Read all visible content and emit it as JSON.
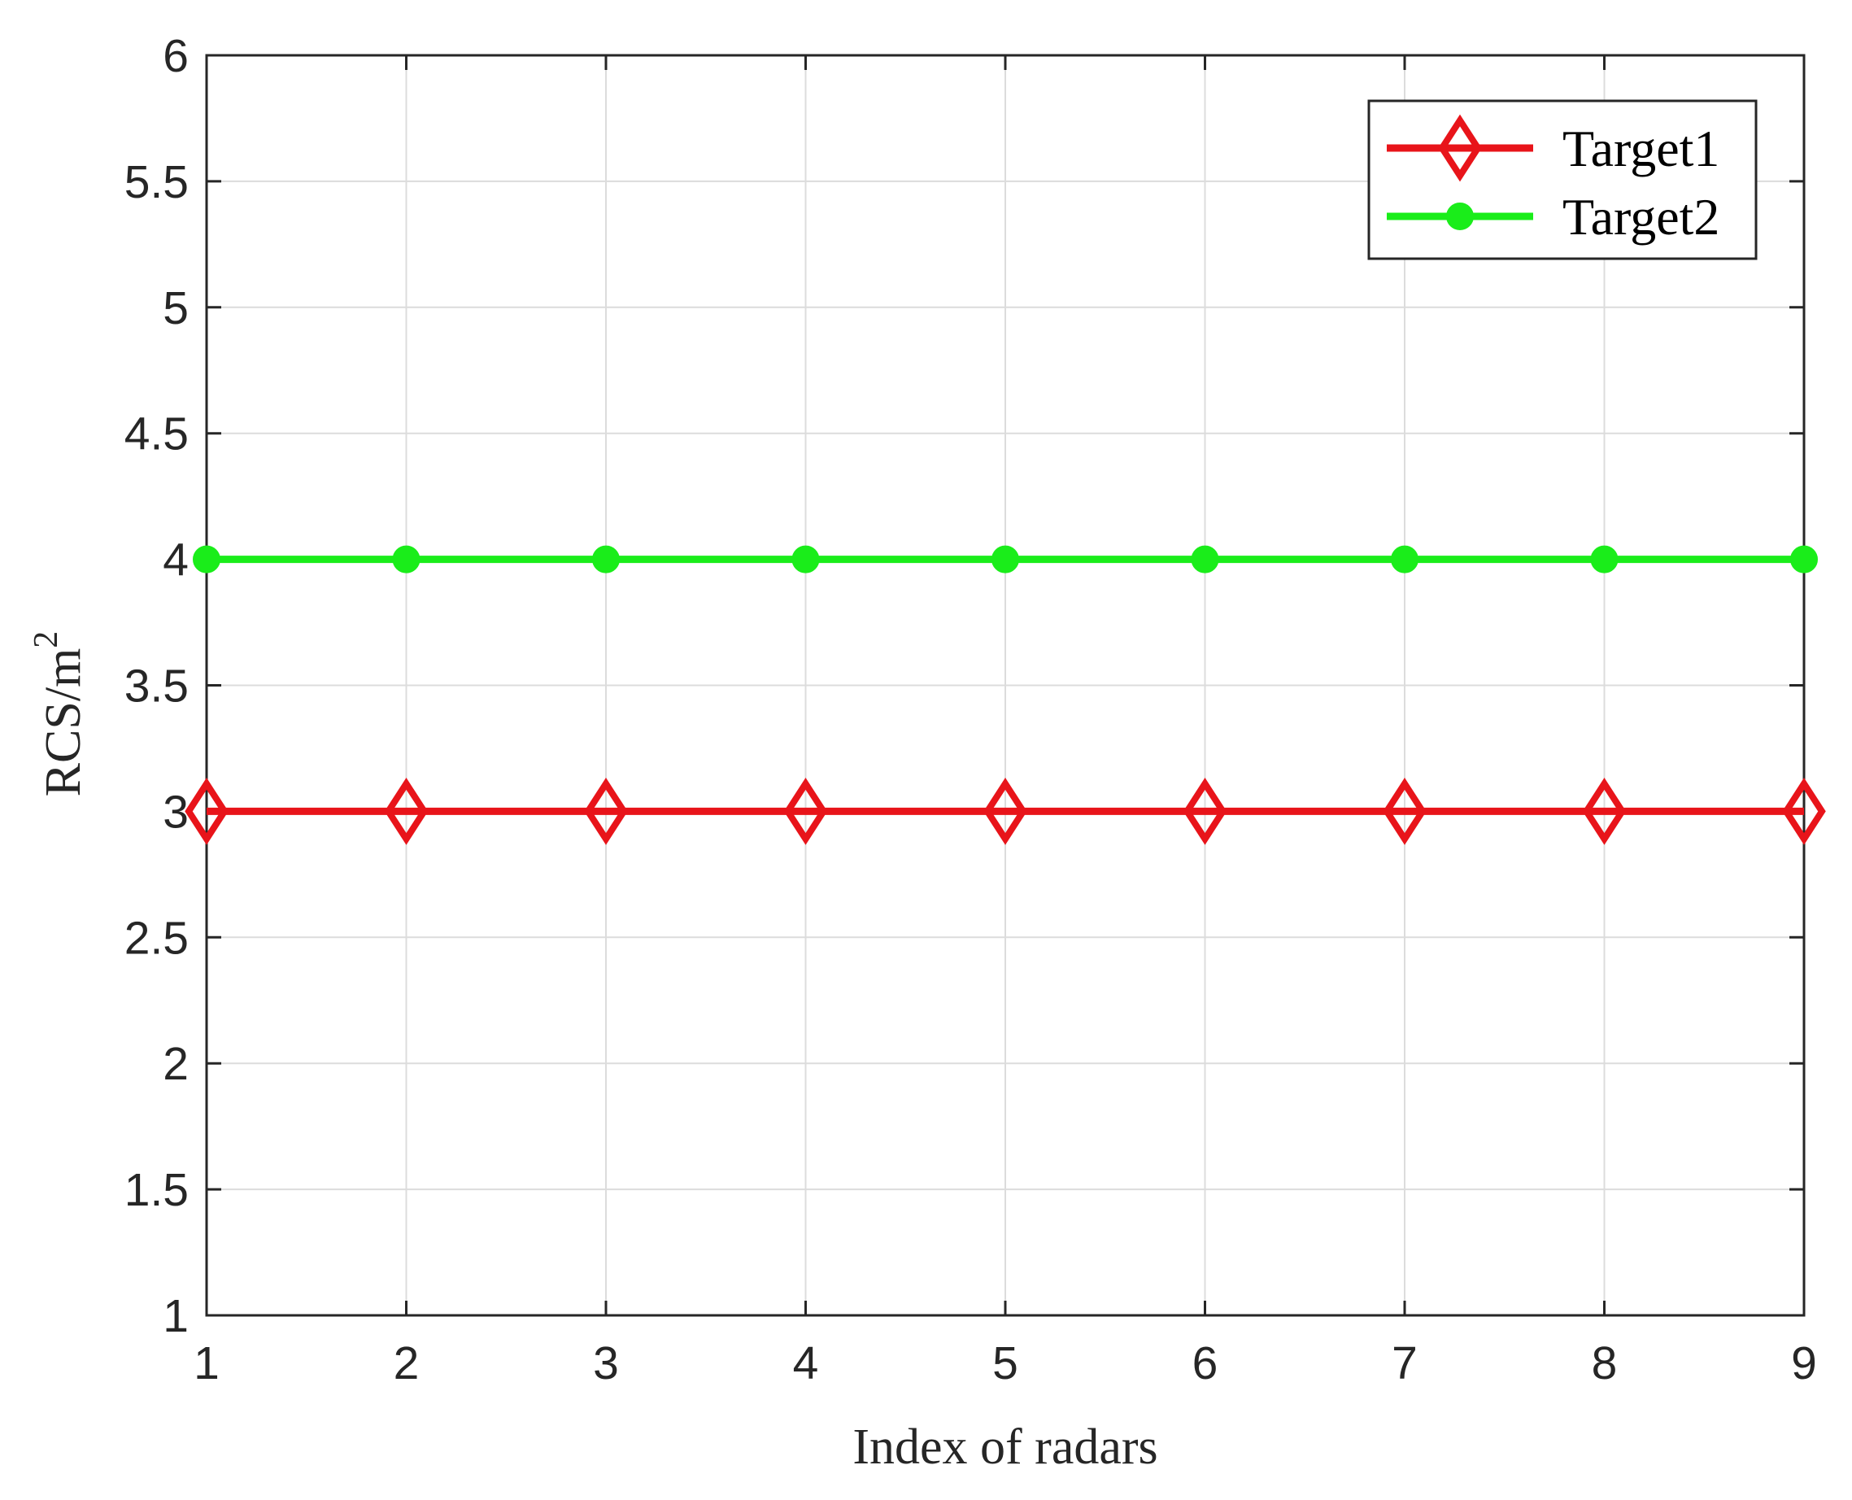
{
  "chart_data": {
    "type": "line",
    "title": "",
    "xlabel": "Index of radars",
    "ylabel_main": "RCS/m",
    "ylabel_superscript": "2",
    "x": [
      1,
      2,
      3,
      4,
      5,
      6,
      7,
      8,
      9
    ],
    "xlim": [
      1,
      9
    ],
    "ylim": [
      1,
      6
    ],
    "xticks": [
      1,
      2,
      3,
      4,
      5,
      6,
      7,
      8,
      9
    ],
    "yticks": [
      1,
      1.5,
      2,
      2.5,
      3,
      3.5,
      4,
      4.5,
      5,
      5.5,
      6
    ],
    "xtick_labels": [
      "1",
      "2",
      "3",
      "4",
      "5",
      "6",
      "7",
      "8",
      "9"
    ],
    "ytick_labels": [
      "1",
      "1.5",
      "2",
      "2.5",
      "3",
      "3.5",
      "4",
      "4.5",
      "5",
      "5.5",
      "6"
    ],
    "grid": true,
    "legend_position": "top-right",
    "series": [
      {
        "name": "Target1",
        "values": [
          3,
          3,
          3,
          3,
          3,
          3,
          3,
          3,
          3
        ],
        "color": "#e8141a",
        "marker": "diamond-open"
      },
      {
        "name": "Target2",
        "values": [
          4,
          4,
          4,
          4,
          4,
          4,
          4,
          4,
          4
        ],
        "color": "#1aed1a",
        "marker": "circle-filled"
      }
    ]
  }
}
